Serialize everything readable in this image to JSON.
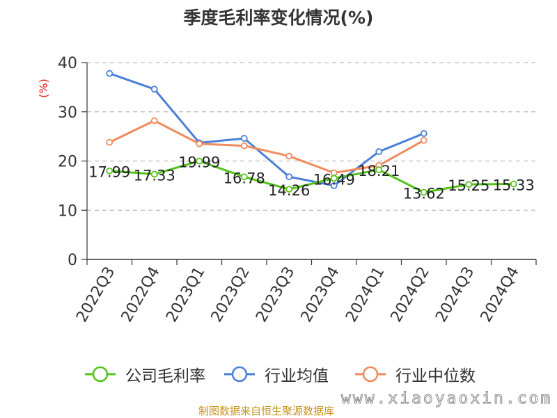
{
  "chart_data": {
    "type": "line",
    "title": "季度毛利率变化情况(%)",
    "ylabel": "(%)",
    "xlabel": "",
    "ylim": [
      0,
      40
    ],
    "yticks": [
      0,
      10,
      20,
      30,
      40
    ],
    "categories": [
      "2022Q3",
      "2022Q4",
      "2023Q1",
      "2023Q2",
      "2023Q3",
      "2023Q4",
      "2024Q1",
      "2024Q2",
      "2024Q3",
      "2024Q4"
    ],
    "grid": "horizontal dashed",
    "legend_position": "bottom",
    "series": [
      {
        "name": "公司毛利率",
        "color": "#52c41a",
        "values": [
          17.99,
          17.33,
          19.99,
          16.78,
          14.26,
          16.49,
          18.21,
          13.62,
          15.25,
          15.33
        ],
        "labels": [
          "17.99",
          "17.33",
          "19.99",
          "16.78",
          "14.26",
          "16.49",
          "18.21",
          "13.62",
          "15.25",
          "15.33"
        ]
      },
      {
        "name": "行业均值",
        "color": "#4a7fd6",
        "values": [
          37.8,
          34.6,
          23.7,
          24.6,
          16.8,
          15.0,
          21.9,
          25.6,
          null,
          null
        ]
      },
      {
        "name": "行业中位数",
        "color": "#f08a5d",
        "values": [
          23.8,
          28.2,
          23.5,
          23.1,
          21.0,
          17.6,
          19.1,
          24.2,
          null,
          null
        ]
      }
    ]
  },
  "footer": {
    "source": "制图数据来自恒生聚源数据库",
    "watermark": "www.xiaoyaoxin.com"
  }
}
